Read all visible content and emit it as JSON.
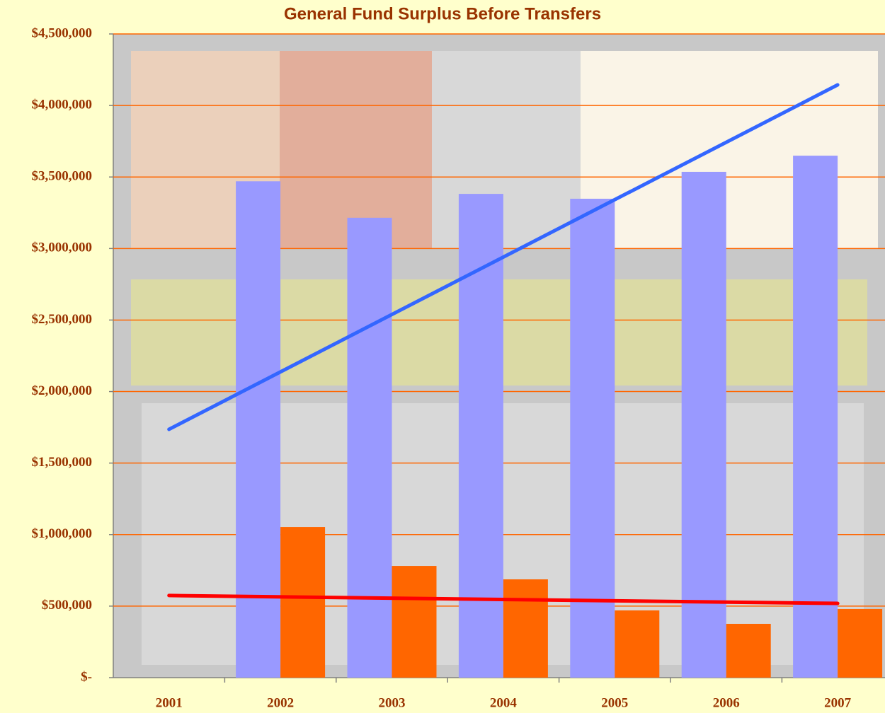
{
  "chart_data": {
    "type": "bar",
    "title": "General Fund Surplus Before Transfers",
    "categories": [
      "2001",
      "2002",
      "2003",
      "2004",
      "2005",
      "2006",
      "2007"
    ],
    "series": [
      {
        "color": "#9999ff",
        "values": [
          null,
          3470000,
          3215000,
          3382000,
          3348000,
          3536000,
          3649000
        ]
      },
      {
        "color": "#ff6600",
        "values": [
          null,
          1053000,
          781000,
          687000,
          470000,
          376000,
          480000
        ]
      }
    ],
    "trendlines": [
      {
        "color": "#3366ff",
        "x": [
          "2001",
          "2007"
        ],
        "values": [
          1736000,
          4144000
        ]
      },
      {
        "color": "#ff0000",
        "x": [
          "2001",
          "2007"
        ],
        "values": [
          574000,
          519000
        ]
      }
    ],
    "ylim": [
      0,
      4500000
    ],
    "yticks": [
      {
        "value": 0,
        "label": "$-"
      },
      {
        "value": 500000,
        "label": "$500,000"
      },
      {
        "value": 1000000,
        "label": "$1,000,000"
      },
      {
        "value": 1500000,
        "label": "$1,500,000"
      },
      {
        "value": 2000000,
        "label": "$2,000,000"
      },
      {
        "value": 2500000,
        "label": "$2,500,000"
      },
      {
        "value": 3000000,
        "label": "$3,000,000"
      },
      {
        "value": 3500000,
        "label": "$3,500,000"
      },
      {
        "value": 4000000,
        "label": "$4,000,000"
      },
      {
        "value": 4500000,
        "label": "$4,500,000"
      }
    ],
    "grid": true,
    "grid_color": "#ff6600"
  }
}
